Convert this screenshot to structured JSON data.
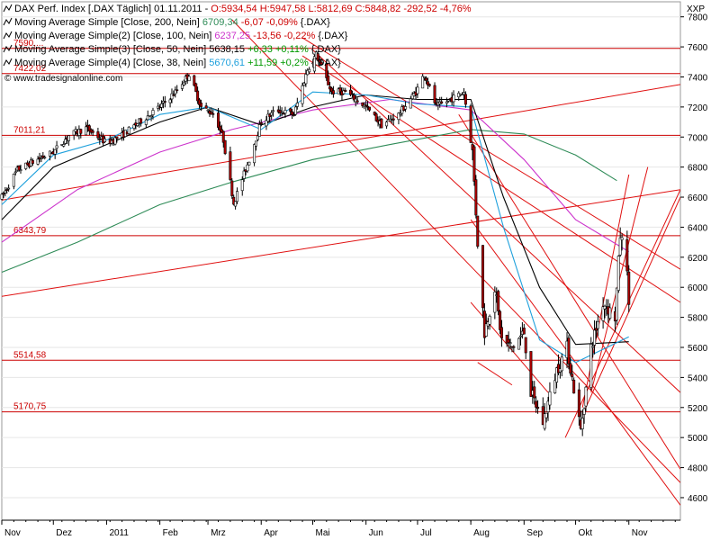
{
  "header": {
    "title_text": "DAX Perf. Index [.DAX Täglich]",
    "date": "01.11.2011",
    "ohlc": "O:5934,54 H:5947,58 L:5812,69 C:5848,82",
    "change": "-292,52 -4,76%",
    "colors": {
      "neg": "#cc0000",
      "pos": "#009900"
    }
  },
  "indicators": [
    {
      "label": "Moving Average Simple [Close, 200, Nein]",
      "value": "6709,34",
      "change": "-6,07 -0,09%",
      "change_color": "#cc0000",
      "suffix": "{.DAX}",
      "color": "#2e8b57"
    },
    {
      "label": "Moving Average Simple(2) [Close, 100, Nein]",
      "value": "6237,25",
      "change": "-13,56 -0,22%",
      "change_color": "#cc0000",
      "suffix": "{.DAX}",
      "color": "#cc33cc"
    },
    {
      "label": "Moving Average Simple(3) [Close, 50, Nein]",
      "value": "5638,15",
      "change": "+6,33 +0,11%",
      "change_color": "#009900",
      "suffix": "{.DAX}",
      "color": "#000000"
    },
    {
      "label": "Moving Average Simple(4) [Close, 38, Nein]",
      "value": "5670,61",
      "change": "+11,59 +0,2%",
      "change_color": "#009900",
      "suffix": "{.DAX}",
      "color": "#1ea0dc"
    }
  ],
  "watermark": "© www.tradesignalonline.com",
  "axis_title": "XXP",
  "chart_data": {
    "type": "candlestick",
    "y_ticks": [
      4600,
      4800,
      5000,
      5200,
      5400,
      5600,
      5800,
      6000,
      6200,
      6400,
      6600,
      6800,
      7000,
      7200,
      7400,
      7600,
      7800
    ],
    "x_labels": [
      "Nov",
      "Dez",
      "2011",
      "Feb",
      "Mrz",
      "Apr",
      "Mai",
      "Jun",
      "Jul",
      "Aug",
      "Sep",
      "Okt",
      "Nov"
    ],
    "x_label_dates": [
      "2010-11-01",
      "2010-12-01",
      "2011-01-01",
      "2011-02-01",
      "2011-03-01",
      "2011-04-01",
      "2011-05-01",
      "2011-06-01",
      "2011-07-01",
      "2011-08-01",
      "2011-09-01",
      "2011-10-01",
      "2011-11-01"
    ],
    "x_range": [
      "2010-11-01",
      "2011-12-01"
    ],
    "ylim": [
      4450,
      7900
    ],
    "horizontal_levels": [
      {
        "value": 7590,
        "label": "7590,..."
      },
      {
        "value": 7422.02,
        "label": "7422,02"
      },
      {
        "value": 7011.21,
        "label": "7011,21"
      },
      {
        "value": 6343.79,
        "label": "6343,79"
      },
      {
        "value": 5514.58,
        "label": "5514,58"
      },
      {
        "value": 5170.75,
        "label": "5170,75"
      }
    ],
    "price_path": [
      [
        "2010-11-01",
        6600
      ],
      [
        "2010-11-10",
        6780
      ],
      [
        "2010-11-20",
        6840
      ],
      [
        "2010-12-01",
        6900
      ],
      [
        "2010-12-10",
        7010
      ],
      [
        "2010-12-20",
        7060
      ],
      [
        "2011-01-01",
        6960
      ],
      [
        "2011-01-10",
        7010
      ],
      [
        "2011-01-20",
        7100
      ],
      [
        "2011-02-01",
        7200
      ],
      [
        "2011-02-10",
        7300
      ],
      [
        "2011-02-18",
        7420
      ],
      [
        "2011-02-25",
        7200
      ],
      [
        "2011-03-05",
        7150
      ],
      [
        "2011-03-10",
        6980
      ],
      [
        "2011-03-16",
        6560
      ],
      [
        "2011-03-25",
        6850
      ],
      [
        "2011-04-01",
        7100
      ],
      [
        "2011-04-10",
        7180
      ],
      [
        "2011-04-20",
        7150
      ],
      [
        "2011-04-28",
        7450
      ],
      [
        "2011-05-03",
        7550
      ],
      [
        "2011-05-12",
        7300
      ],
      [
        "2011-05-20",
        7300
      ],
      [
        "2011-06-01",
        7200
      ],
      [
        "2011-06-10",
        7080
      ],
      [
        "2011-06-20",
        7150
      ],
      [
        "2011-06-30",
        7300
      ],
      [
        "2011-07-05",
        7420
      ],
      [
        "2011-07-12",
        7200
      ],
      [
        "2011-07-20",
        7250
      ],
      [
        "2011-07-28",
        7300
      ],
      [
        "2011-08-02",
        6900
      ],
      [
        "2011-08-05",
        6300
      ],
      [
        "2011-08-09",
        5700
      ],
      [
        "2011-08-15",
        6000
      ],
      [
        "2011-08-19",
        5650
      ],
      [
        "2011-08-25",
        5600
      ],
      [
        "2011-09-01",
        5700
      ],
      [
        "2011-09-05",
        5300
      ],
      [
        "2011-09-12",
        5100
      ],
      [
        "2011-09-20",
        5450
      ],
      [
        "2011-09-26",
        5600
      ],
      [
        "2011-10-04",
        5050
      ],
      [
        "2011-10-10",
        5600
      ],
      [
        "2011-10-17",
        5900
      ],
      [
        "2011-10-24",
        5800
      ],
      [
        "2011-10-27",
        6350
      ],
      [
        "2011-10-31",
        6150
      ],
      [
        "2011-11-01",
        5849
      ]
    ],
    "series": [
      {
        "name": "Moving Average Simple [Close, 200, Nein]",
        "color": "#2e8b57",
        "points": [
          [
            "2010-11-01",
            6100
          ],
          [
            "2010-12-15",
            6300
          ],
          [
            "2011-02-01",
            6550
          ],
          [
            "2011-03-15",
            6700
          ],
          [
            "2011-05-01",
            6850
          ],
          [
            "2011-06-15",
            6950
          ],
          [
            "2011-08-01",
            7050
          ],
          [
            "2011-09-01",
            7020
          ],
          [
            "2011-10-01",
            6880
          ],
          [
            "2011-10-25",
            6710
          ]
        ]
      },
      {
        "name": "Moving Average Simple(2) [Close, 100, Nein]",
        "color": "#cc33cc",
        "points": [
          [
            "2010-11-01",
            6300
          ],
          [
            "2010-12-15",
            6650
          ],
          [
            "2011-02-01",
            6900
          ],
          [
            "2011-03-15",
            7050
          ],
          [
            "2011-05-01",
            7180
          ],
          [
            "2011-06-15",
            7250
          ],
          [
            "2011-08-01",
            7180
          ],
          [
            "2011-09-01",
            6850
          ],
          [
            "2011-10-01",
            6450
          ],
          [
            "2011-11-01",
            6237
          ]
        ]
      },
      {
        "name": "Moving Average Simple(3) [Close, 50, Nein]",
        "color": "#000000",
        "points": [
          [
            "2010-11-01",
            6450
          ],
          [
            "2010-12-01",
            6800
          ],
          [
            "2011-01-01",
            6950
          ],
          [
            "2011-02-01",
            7100
          ],
          [
            "2011-03-01",
            7200
          ],
          [
            "2011-04-01",
            7080
          ],
          [
            "2011-05-01",
            7200
          ],
          [
            "2011-06-01",
            7280
          ],
          [
            "2011-07-01",
            7250
          ],
          [
            "2011-08-01",
            7250
          ],
          [
            "2011-08-20",
            6600
          ],
          [
            "2011-09-10",
            6000
          ],
          [
            "2011-10-01",
            5620
          ],
          [
            "2011-11-01",
            5638
          ]
        ]
      },
      {
        "name": "Moving Average Simple(4) [Close, 38, Nein]",
        "color": "#1ea0dc",
        "points": [
          [
            "2010-11-01",
            6550
          ],
          [
            "2010-12-01",
            6880
          ],
          [
            "2011-01-01",
            6980
          ],
          [
            "2011-02-01",
            7150
          ],
          [
            "2011-03-01",
            7200
          ],
          [
            "2011-04-01",
            7050
          ],
          [
            "2011-05-01",
            7300
          ],
          [
            "2011-06-01",
            7280
          ],
          [
            "2011-07-01",
            7220
          ],
          [
            "2011-08-01",
            7200
          ],
          [
            "2011-08-20",
            6400
          ],
          [
            "2011-09-10",
            5650
          ],
          [
            "2011-10-01",
            5500
          ],
          [
            "2011-11-01",
            5670
          ]
        ]
      }
    ],
    "trendlines": [
      {
        "from": [
          "2010-11-01",
          6580
        ],
        "to": [
          "2011-12-01",
          7350
        ]
      },
      {
        "from": [
          "2010-11-01",
          5940
        ],
        "to": [
          "2011-12-01",
          6650
        ]
      },
      {
        "from": [
          "2011-04-25",
          7660
        ],
        "to": [
          "2011-12-01",
          6120
        ]
      },
      {
        "from": [
          "2011-04-25",
          7540
        ],
        "to": [
          "2011-12-01",
          5900
        ]
      },
      {
        "from": [
          "2011-07-25",
          7150
        ],
        "to": [
          "2011-12-01",
          4790
        ]
      },
      {
        "from": [
          "2011-05-01",
          7580
        ],
        "to": [
          "2011-12-01",
          5300
        ]
      },
      {
        "from": [
          "2011-03-15",
          7780
        ],
        "to": [
          "2011-12-01",
          4700
        ]
      },
      {
        "from": [
          "2011-08-01",
          6450
        ],
        "to": [
          "2011-12-01",
          4550
        ]
      },
      {
        "from": [
          "2011-09-25",
          5000
        ],
        "to": [
          "2011-12-01",
          6650
        ]
      },
      {
        "from": [
          "2011-10-05",
          5150
        ],
        "to": [
          "2011-12-01",
          6600
        ]
      },
      {
        "from": [
          "2011-10-10",
          5300
        ],
        "to": [
          "2011-11-12",
          6800
        ]
      },
      {
        "from": [
          "2011-10-05",
          5200
        ],
        "to": [
          "2011-11-01",
          6750
        ]
      },
      {
        "from": [
          "2011-08-01",
          5900
        ],
        "to": [
          "2011-09-15",
          5300
        ]
      },
      {
        "from": [
          "2011-08-05",
          5500
        ],
        "to": [
          "2011-08-25",
          5350
        ]
      }
    ]
  }
}
